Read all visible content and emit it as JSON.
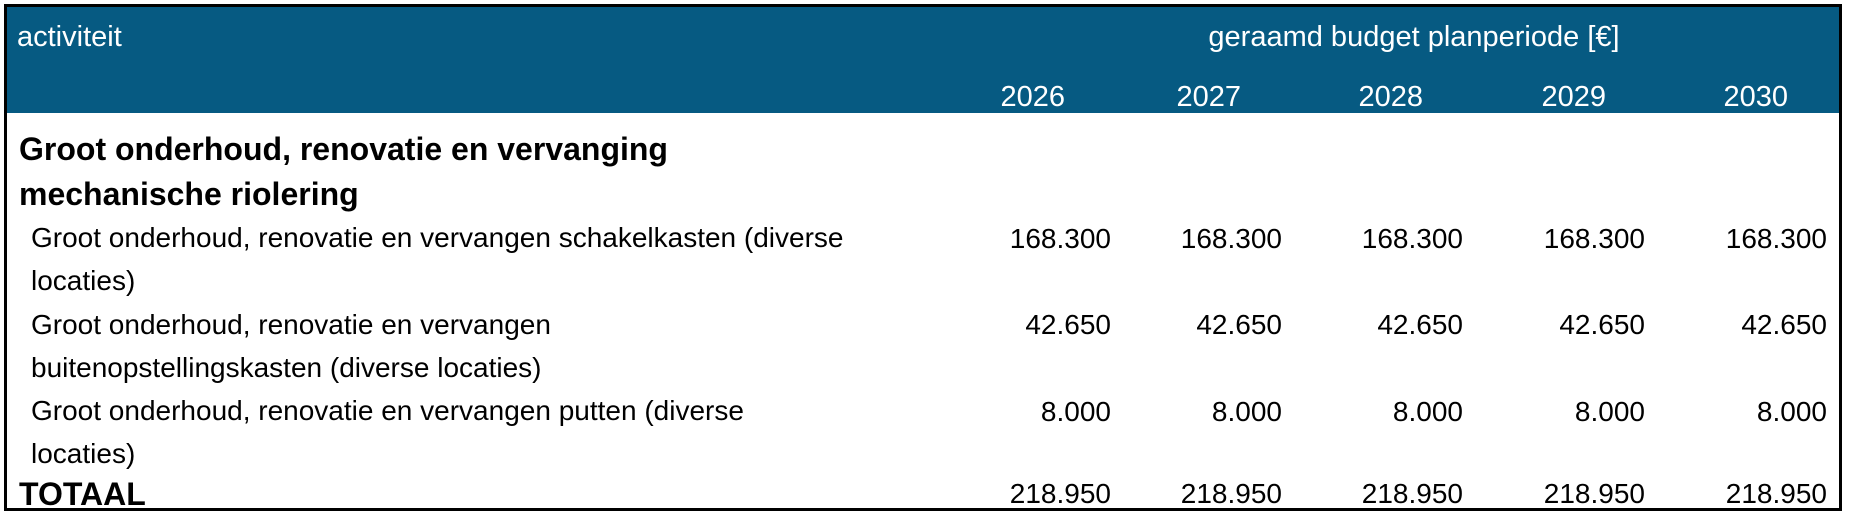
{
  "header": {
    "activity_label": "activiteit",
    "budget_label": "geraamd budget planperiode [€]",
    "years": [
      "2026",
      "2027",
      "2028",
      "2029",
      "2030"
    ]
  },
  "section": {
    "title_line1": "Groot onderhoud, renovatie en vervanging",
    "title_line2": "mechanische riolering"
  },
  "rows": [
    {
      "label_line1": "Groot onderhoud, renovatie en vervangen schakelkasten (diverse",
      "label_line2": "locaties)",
      "values": [
        "168.300",
        "168.300",
        "168.300",
        "168.300",
        "168.300"
      ]
    },
    {
      "label_line1": "Groot onderhoud, renovatie en vervangen",
      "label_line2": "buitenopstellingskasten (diverse locaties)",
      "values": [
        "42.650",
        "42.650",
        "42.650",
        "42.650",
        "42.650"
      ]
    },
    {
      "label_line1": "Groot onderhoud, renovatie en vervangen putten (diverse",
      "label_line2": "locaties)",
      "values": [
        "8.000",
        "8.000",
        "8.000",
        "8.000",
        "8.000"
      ]
    }
  ],
  "total": {
    "label": "TOTAAL",
    "values": [
      "218.950",
      "218.950",
      "218.950",
      "218.950",
      "218.950"
    ]
  },
  "colors": {
    "header_bg": "#065a82",
    "header_text": "#ffffff",
    "border": "#000000"
  }
}
